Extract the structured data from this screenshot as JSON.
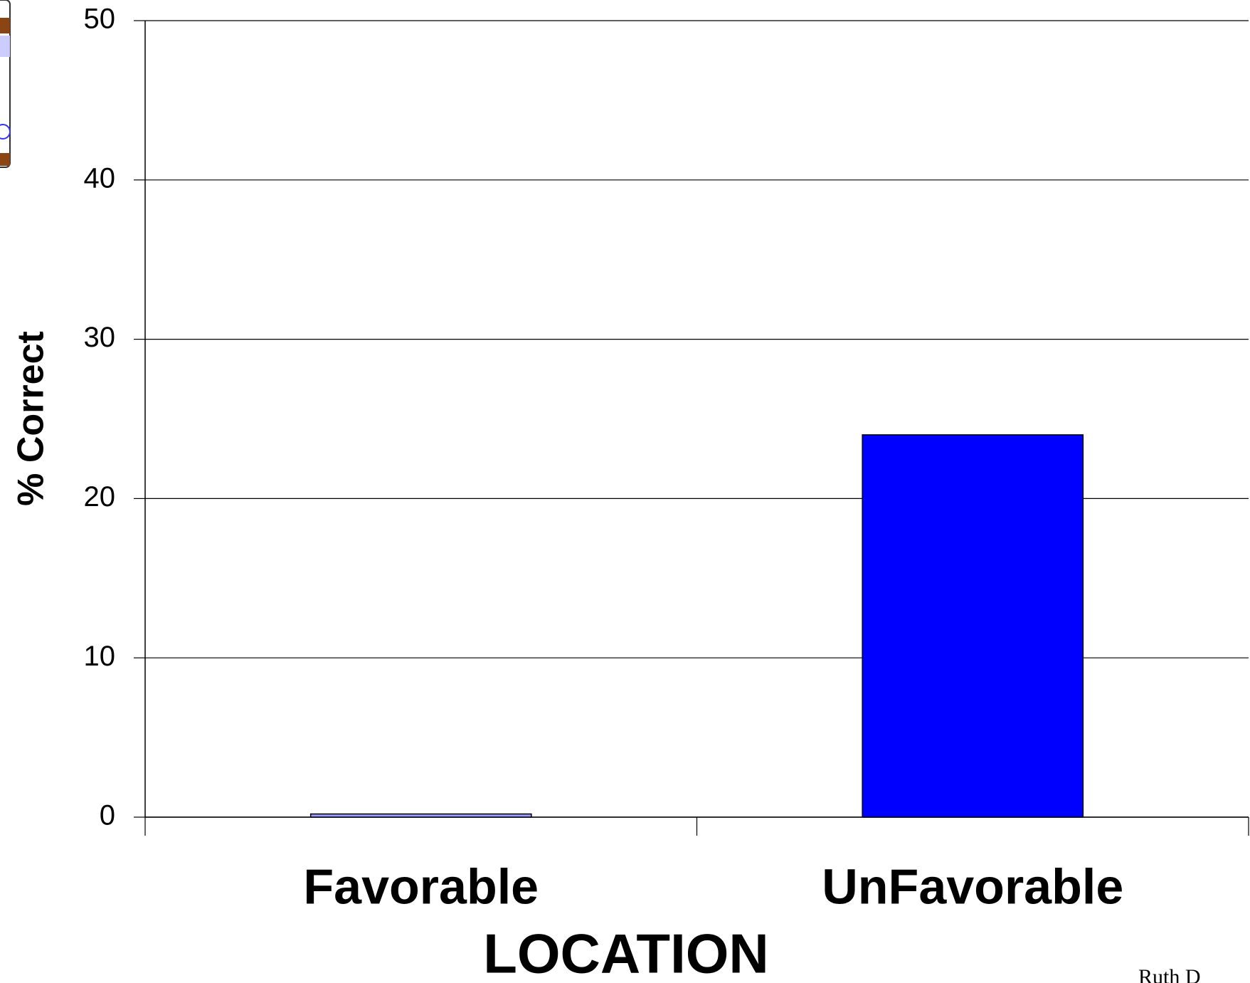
{
  "chart_data": {
    "type": "bar",
    "x_label": "LOCATION",
    "y_label": "% Correct",
    "categories": [
      "Favorable",
      "UnFavorable"
    ],
    "values": [
      0.2,
      24
    ],
    "colors": [
      "#9999ff",
      "#0000ff"
    ],
    "ylim": [
      0,
      50
    ],
    "yticks": [
      0,
      10,
      20,
      30,
      40,
      50
    ],
    "grid": true,
    "annotation": "Ruth D"
  }
}
